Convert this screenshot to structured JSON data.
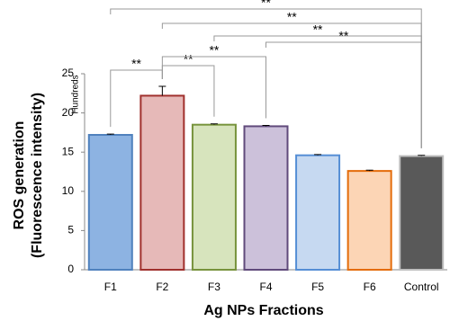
{
  "chart_data": {
    "type": "bar",
    "y_label_lines": [
      "ROS generation",
      "(Fluorescence intensity)"
    ],
    "y_unit": "Hundreds",
    "x_label": "Ag NPs Fractions",
    "categories": [
      "F1",
      "F2",
      "F3",
      "F4",
      "F5",
      "F6",
      "Control"
    ],
    "values": [
      17.2,
      22.2,
      18.5,
      18.3,
      14.6,
      12.6,
      14.5
    ],
    "errors": [
      0.1,
      1.2,
      0.1,
      0.1,
      0.1,
      0.1,
      0.1
    ],
    "colors": [
      "#8db3e2",
      "#e6b9b8",
      "#d7e4bd",
      "#ccc1da",
      "#c6d9f1",
      "#fcd5b5",
      "#595959"
    ],
    "border_colors": [
      "#4f81bd",
      "#a0302d",
      "#77933c",
      "#604a7b",
      "#558ed5",
      "#e46c0a",
      "#bfbfbf"
    ],
    "ylim": [
      0,
      25
    ],
    "yticks": [
      0,
      5,
      10,
      15,
      20,
      25
    ],
    "comparisons": [
      {
        "between": [
          0,
          1
        ],
        "label": "**"
      },
      {
        "between": [
          1,
          2
        ],
        "label": "**"
      },
      {
        "between": [
          1,
          3
        ],
        "label": "**"
      },
      {
        "between": [
          0,
          6
        ],
        "label": "**"
      },
      {
        "between": [
          1,
          6
        ],
        "label": "**"
      },
      {
        "between": [
          2,
          6
        ],
        "label": "**"
      },
      {
        "between": [
          3,
          6
        ],
        "label": "**"
      }
    ]
  }
}
